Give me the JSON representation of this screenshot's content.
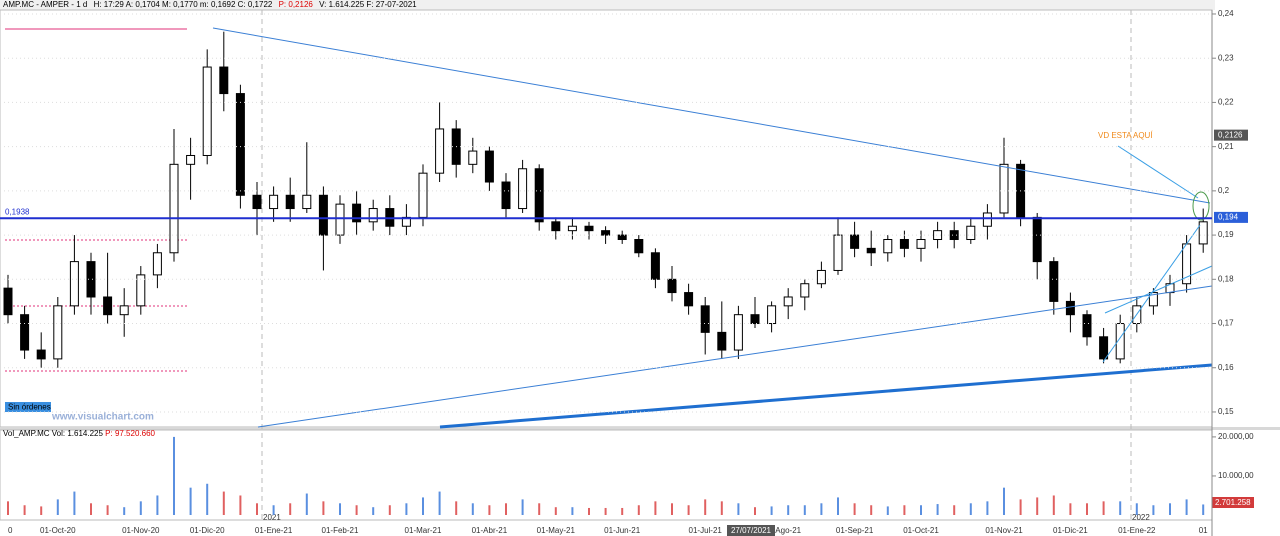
{
  "header": [
    "AMP.MC - AMPER - 1 d",
    "H: 17:29 A: 0,1704 M: 0,1770 m: 0,1692 C: 0,1722",
    "P: 0,2126",
    "V: 1.614.225 F: 27-07-2021"
  ],
  "chart_data": {
    "type": "candlestick",
    "categories": [
      "0",
      null,
      null,
      "01-Oct-20",
      null,
      null,
      null,
      null,
      "01-Nov-20",
      null,
      null,
      null,
      "01-Dic-20",
      null,
      null,
      null,
      "01-Ene-21",
      null,
      null,
      null,
      "01-Feb-21",
      null,
      null,
      null,
      null,
      "01-Mar-21",
      null,
      null,
      null,
      "01-Abr-21",
      null,
      null,
      null,
      "01-May-21",
      null,
      null,
      null,
      "01-Jun-21",
      null,
      null,
      null,
      null,
      "01-Jul-21",
      null,
      null,
      null,
      null,
      "Ago-21",
      null,
      null,
      null,
      "01-Sep-21",
      null,
      null,
      null,
      "01-Oct-21",
      null,
      null,
      null,
      null,
      "01-Nov-21",
      null,
      null,
      null,
      "01-Dic-21",
      null,
      null,
      null,
      "01-Ene-22",
      null,
      null,
      null,
      "01"
    ],
    "open": [
      0.178,
      0.172,
      0.164,
      0.162,
      0.174,
      0.184,
      0.176,
      0.172,
      0.174,
      0.181,
      0.186,
      0.206,
      0.208,
      0.228,
      0.222,
      0.199,
      0.196,
      0.199,
      0.196,
      0.199,
      0.19,
      0.197,
      0.193,
      0.196,
      0.192,
      0.194,
      0.204,
      0.214,
      0.206,
      0.209,
      0.202,
      0.196,
      0.205,
      0.193,
      0.191,
      0.192,
      0.191,
      0.19,
      0.189,
      0.186,
      0.18,
      0.177,
      0.174,
      0.168,
      0.164,
      0.172,
      0.17,
      0.174,
      0.176,
      0.179,
      0.182,
      0.19,
      0.187,
      0.186,
      0.189,
      0.187,
      0.189,
      0.191,
      0.189,
      0.192,
      0.195,
      0.206,
      0.194,
      0.184,
      0.175,
      0.172,
      0.167,
      0.162,
      0.17,
      0.174,
      0.177,
      0.179,
      0.188
    ],
    "high": [
      0.181,
      0.174,
      0.168,
      0.176,
      0.19,
      0.186,
      0.186,
      0.178,
      0.183,
      0.188,
      0.214,
      0.212,
      0.232,
      0.236,
      0.224,
      0.202,
      0.201,
      0.203,
      0.211,
      0.201,
      0.199,
      0.2,
      0.198,
      0.199,
      0.197,
      0.206,
      0.22,
      0.216,
      0.212,
      0.21,
      0.204,
      0.207,
      0.206,
      0.194,
      0.194,
      0.193,
      0.192,
      0.191,
      0.19,
      0.187,
      0.183,
      0.179,
      0.176,
      0.175,
      0.174,
      0.176,
      0.175,
      0.178,
      0.18,
      0.184,
      0.194,
      0.193,
      0.191,
      0.19,
      0.191,
      0.191,
      0.193,
      0.193,
      0.194,
      0.197,
      0.212,
      0.207,
      0.195,
      0.185,
      0.177,
      0.173,
      0.169,
      0.172,
      0.176,
      0.178,
      0.181,
      0.19,
      0.196
    ],
    "low": [
      0.17,
      0.162,
      0.16,
      0.16,
      0.172,
      0.172,
      0.17,
      0.167,
      0.172,
      0.178,
      0.184,
      0.198,
      0.206,
      0.218,
      0.196,
      0.19,
      0.193,
      0.193,
      0.195,
      0.182,
      0.188,
      0.19,
      0.191,
      0.19,
      0.19,
      0.192,
      0.202,
      0.203,
      0.204,
      0.2,
      0.194,
      0.195,
      0.191,
      0.189,
      0.189,
      0.189,
      0.188,
      0.188,
      0.185,
      0.178,
      0.175,
      0.172,
      0.163,
      0.162,
      0.162,
      0.169,
      0.168,
      0.171,
      0.173,
      0.178,
      0.181,
      0.185,
      0.183,
      0.184,
      0.185,
      0.184,
      0.187,
      0.187,
      0.188,
      0.189,
      0.194,
      0.192,
      0.18,
      0.172,
      0.168,
      0.165,
      0.161,
      0.161,
      0.168,
      0.172,
      0.174,
      0.177,
      0.186
    ],
    "close": [
      0.172,
      0.164,
      0.162,
      0.174,
      0.184,
      0.176,
      0.172,
      0.174,
      0.181,
      0.186,
      0.206,
      0.208,
      0.228,
      0.222,
      0.199,
      0.196,
      0.199,
      0.196,
      0.199,
      0.19,
      0.197,
      0.193,
      0.196,
      0.192,
      0.194,
      0.204,
      0.214,
      0.206,
      0.209,
      0.202,
      0.196,
      0.205,
      0.193,
      0.191,
      0.192,
      0.191,
      0.19,
      0.189,
      0.186,
      0.18,
      0.177,
      0.174,
      0.168,
      0.164,
      0.172,
      0.17,
      0.174,
      0.176,
      0.179,
      0.182,
      0.19,
      0.187,
      0.186,
      0.189,
      0.187,
      0.189,
      0.191,
      0.189,
      0.192,
      0.195,
      0.206,
      0.194,
      0.184,
      0.175,
      0.172,
      0.167,
      0.162,
      0.17,
      0.174,
      0.177,
      0.179,
      0.188,
      0.193
    ],
    "ylim": [
      0.1466,
      0.2409
    ],
    "yticks": [
      {
        "value": 0.15,
        "label": "0,15"
      },
      {
        "value": 0.16,
        "label": "0,16"
      },
      {
        "value": 0.17,
        "label": "0,17"
      },
      {
        "value": 0.18,
        "label": "0,18"
      },
      {
        "value": 0.19,
        "label": "0,19"
      },
      {
        "value": 0.2,
        "label": "0,2"
      },
      {
        "value": 0.21,
        "label": "0,21"
      },
      {
        "value": 0.22,
        "label": "0,22"
      },
      {
        "value": 0.23,
        "label": "0,23"
      },
      {
        "value": 0.24,
        "label": "0,24"
      }
    ],
    "grid": true,
    "level": {
      "value": 0.1938,
      "label": "0,1938",
      "color": "#1f2fd0"
    },
    "price_markers": [
      {
        "value": 0.2126,
        "label": "0,2126",
        "color": "#555555"
      },
      {
        "value": 0.194,
        "label": "0,194",
        "color": "#2b5fd9"
      }
    ],
    "annotations": [
      "VD ESTA AQUÍ",
      "Sin órdenes",
      "www.visualchart.com",
      "2021",
      "2022",
      "27/07/2021"
    ],
    "volume": {
      "title": "Vol_AMP.MC Vol: 1.614.225",
      "total": "P: 97.520.660",
      "current": "2.701.258",
      "values": [
        3500,
        2500,
        2200,
        4000,
        6000,
        3000,
        2500,
        2000,
        3500,
        5000,
        20000,
        7000,
        8000,
        6000,
        5000,
        3000,
        2500,
        3000,
        5500,
        3500,
        3000,
        2500,
        2000,
        2500,
        3000,
        4500,
        6000,
        3500,
        3000,
        2500,
        3000,
        4000,
        3000,
        2000,
        2000,
        1800,
        1800,
        1800,
        2500,
        3500,
        3000,
        2500,
        4000,
        3500,
        3000,
        2000,
        2200,
        2500,
        2500,
        3000,
        4500,
        3000,
        2500,
        2200,
        2500,
        2500,
        2800,
        2500,
        3000,
        3500,
        7000,
        4000,
        4500,
        5000,
        3000,
        3000,
        3500,
        3500,
        3000,
        2500,
        3000,
        4000,
        2700
      ],
      "ylim": [
        0,
        21000
      ],
      "yticks": [
        {
          "value": 10000,
          "label": "10.000,00"
        },
        {
          "value": 20000,
          "label": "20.000,00"
        }
      ]
    }
  }
}
